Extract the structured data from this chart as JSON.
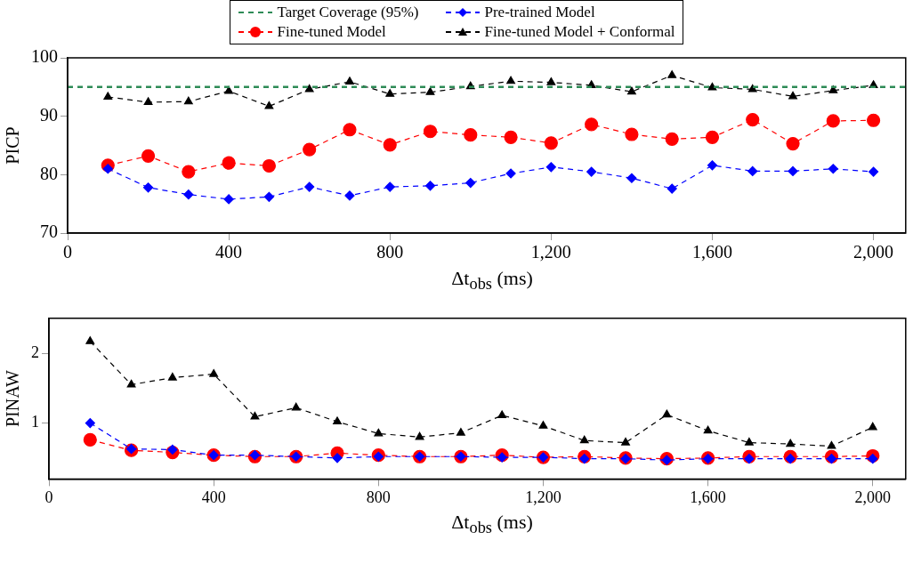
{
  "chart_data": [
    {
      "type": "line",
      "ylabel": "PICP",
      "xlabel": "Δt$_{obs}$ (ms)",
      "legend": "top",
      "grid": false,
      "xlim": [
        0,
        2080
      ],
      "xticks": [
        0,
        400,
        800,
        {
          "value": 1200,
          "label": "1,200"
        },
        {
          "value": 1600,
          "label": "1,600"
        },
        {
          "value": 2000,
          "label": "2,000"
        }
      ],
      "ylim": [
        70,
        100
      ],
      "yticks": [
        70,
        80,
        90,
        100
      ],
      "x": [
        100,
        200,
        300,
        400,
        500,
        600,
        700,
        800,
        900,
        1000,
        1100,
        1200,
        1300,
        1400,
        1500,
        1600,
        1700,
        1800,
        1900,
        2000
      ],
      "ref_lines": [
        {
          "axis": "y",
          "value": 95,
          "label": "Target Coverage (95%)",
          "color": "#2e8b57",
          "line_style": "dashed"
        }
      ],
      "series": [
        {
          "name": "Pre-trained Model",
          "color": "#0000ff",
          "marker": "diamond",
          "line_style": "dashed",
          "values": [
            81,
            77.8,
            76.6,
            75.8,
            76.2,
            77.9,
            76.4,
            77.9,
            78.1,
            78.6,
            80.2,
            81.3,
            80.5,
            79.4,
            77.6,
            81.6,
            80.6,
            80.6,
            81,
            80.5
          ]
        },
        {
          "name": "Fine-tuned Model",
          "color": "#ff0000",
          "marker": "circle",
          "line_style": "dashed",
          "values": [
            81.6,
            83.2,
            80.5,
            82,
            81.5,
            84.3,
            87.7,
            85.1,
            87.4,
            86.8,
            86.4,
            85.4,
            88.6,
            86.9,
            86.1,
            86.4,
            89.4,
            85.3,
            89.2,
            89.3
          ]
        },
        {
          "name": "Fine-tuned Model + Conformal",
          "color": "#000000",
          "marker": "triangle",
          "line_style": "dashed",
          "values": [
            93.3,
            92.4,
            92.5,
            94.3,
            91.7,
            94.6,
            95.9,
            93.8,
            94.1,
            95.1,
            96,
            95.8,
            95.3,
            94.2,
            97,
            94.9,
            94.6,
            93.4,
            94.4,
            95.3
          ]
        }
      ]
    },
    {
      "type": "line",
      "ylabel": "PINAW",
      "xlabel": "Δt$_{obs}$ (ms)",
      "legend": false,
      "grid": false,
      "xlim": [
        0,
        2080
      ],
      "xticks": [
        0,
        400,
        800,
        {
          "value": 1200,
          "label": "1,200"
        },
        {
          "value": 1600,
          "label": "1,600"
        },
        {
          "value": 2000,
          "label": "2,000"
        }
      ],
      "ylim": [
        0.2,
        2.5
      ],
      "yticks": [
        1,
        2
      ],
      "x": [
        100,
        200,
        300,
        400,
        500,
        600,
        700,
        800,
        900,
        1000,
        1100,
        1200,
        1300,
        1400,
        1500,
        1600,
        1700,
        1800,
        1900,
        2000
      ],
      "series": [
        {
          "color": "#0000ff",
          "marker": "diamond",
          "line_style": "dashed",
          "values": [
            1,
            0.63,
            0.62,
            0.54,
            0.54,
            0.52,
            0.5,
            0.52,
            0.52,
            0.52,
            0.51,
            0.51,
            0.49,
            0.49,
            0.47,
            0.49,
            0.49,
            0.49,
            0.49,
            0.49
          ]
        },
        {
          "color": "#ff0000",
          "marker": "circle",
          "line_style": "dashed",
          "values": [
            0.76,
            0.61,
            0.58,
            0.54,
            0.52,
            0.52,
            0.57,
            0.54,
            0.52,
            0.52,
            0.54,
            0.51,
            0.52,
            0.5,
            0.49,
            0.5,
            0.52,
            0.52,
            0.52,
            0.53
          ]
        },
        {
          "color": "#000000",
          "marker": "triangle",
          "line_style": "dashed",
          "values": [
            2.17,
            1.55,
            1.65,
            1.7,
            1.09,
            1.22,
            1.02,
            0.85,
            0.8,
            0.86,
            1.11,
            0.96,
            0.75,
            0.72,
            1.12,
            0.89,
            0.72,
            0.7,
            0.67,
            0.94
          ]
        }
      ]
    }
  ]
}
